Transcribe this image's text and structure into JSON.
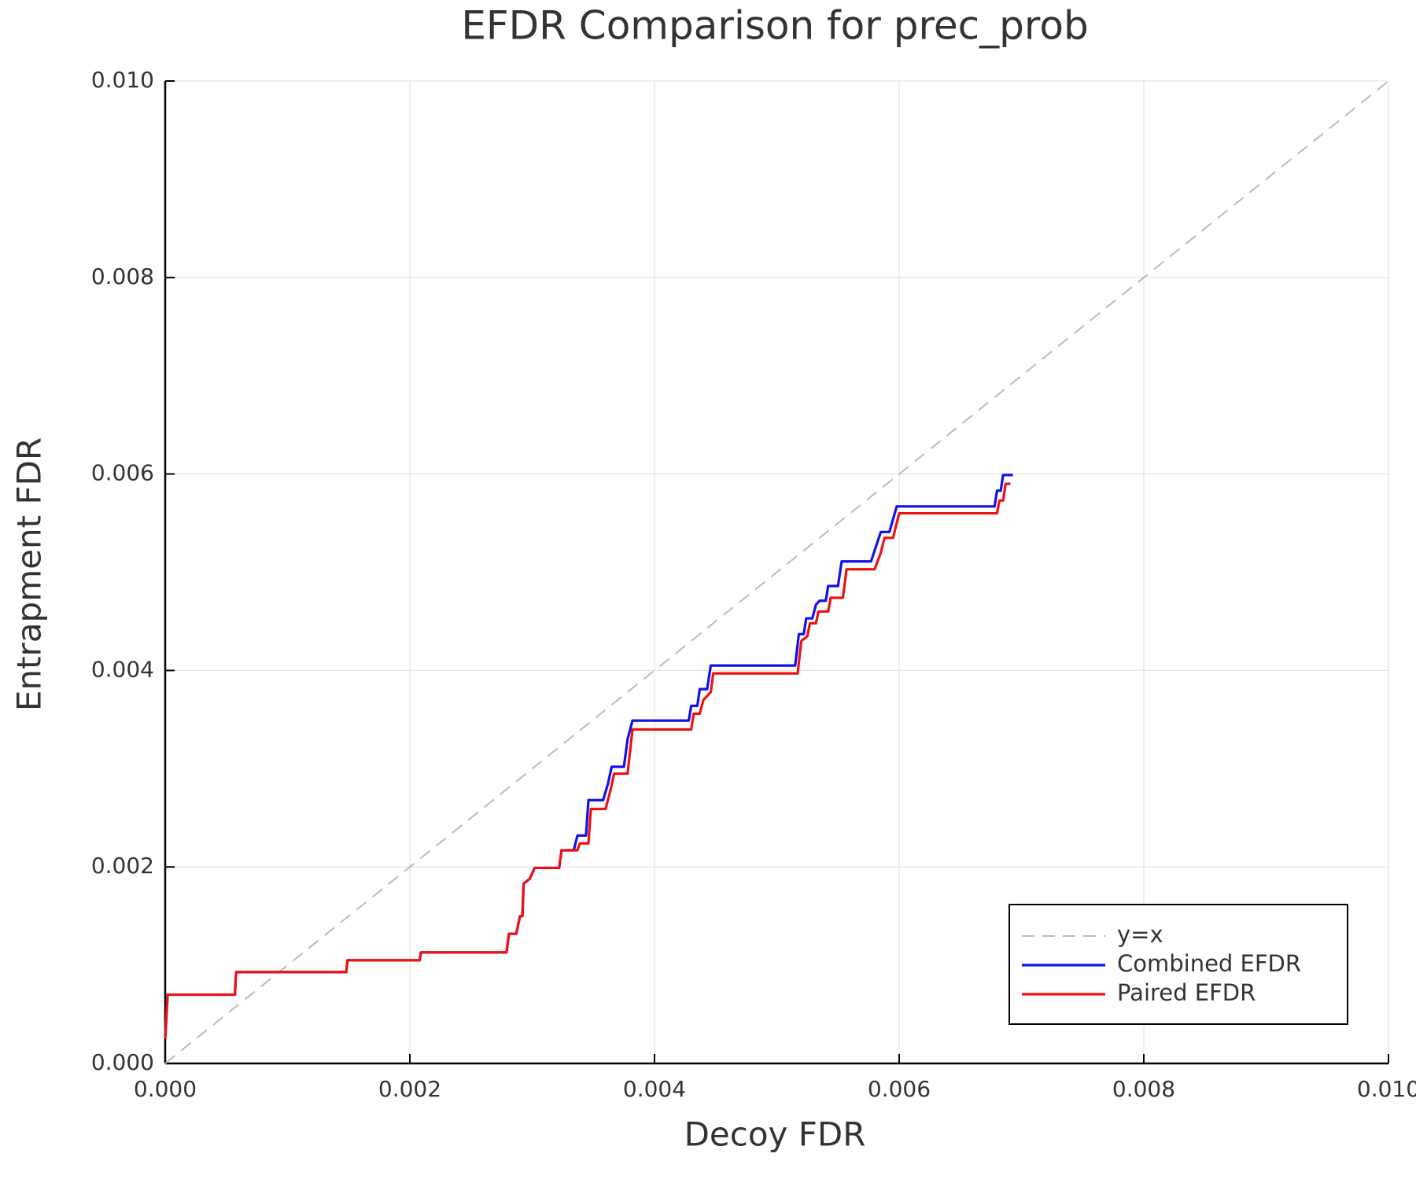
{
  "chart_data": {
    "type": "line",
    "title": "EFDR Comparison for prec_prob",
    "x_label": "Decoy FDR",
    "y_label": "Entrapment FDR",
    "xlim": [
      0,
      0.01
    ],
    "ylim": [
      0,
      0.01
    ],
    "xticks": [
      {
        "value": 0,
        "label": "0.000"
      },
      {
        "value": 0.002,
        "label": "0.002"
      },
      {
        "value": 0.004,
        "label": "0.004"
      },
      {
        "value": 0.006,
        "label": "0.006"
      },
      {
        "value": 0.008,
        "label": "0.008"
      },
      {
        "value": 0.01,
        "label": "0.010"
      }
    ],
    "yticks": [
      {
        "value": 0,
        "label": "0.000"
      },
      {
        "value": 0.002,
        "label": "0.002"
      },
      {
        "value": 0.004,
        "label": "0.004"
      },
      {
        "value": 0.006,
        "label": "0.006"
      },
      {
        "value": 0.008,
        "label": "0.008"
      },
      {
        "value": 0.01,
        "label": "0.010"
      }
    ],
    "grid": true,
    "legend": "bottom-right",
    "series": [
      {
        "name": "y=x",
        "color": "#bbbbbb",
        "dashed": true,
        "x": [
          0,
          0.01
        ],
        "values": [
          0,
          0.01
        ]
      },
      {
        "name": "Combined EFDR",
        "color": "#1010ee",
        "dashed": false,
        "x": [
          0,
          2e-05,
          0.00057,
          0.00058,
          0.00148,
          0.00149,
          0.00208,
          0.00209,
          0.00279,
          0.00281,
          0.00287,
          0.0029,
          0.00292,
          0.00293,
          0.00298,
          0.00302,
          0.00322,
          0.00324,
          0.00334,
          0.00337,
          0.00344,
          0.00346,
          0.00358,
          0.00362,
          0.00365,
          0.00375,
          0.00378,
          0.00382,
          0.00428,
          0.0043,
          0.00435,
          0.00437,
          0.00443,
          0.00446,
          0.00515,
          0.00518,
          0.00522,
          0.00524,
          0.00529,
          0.00532,
          0.00535,
          0.0054,
          0.00542,
          0.0055,
          0.00553,
          0.00577,
          0.00581,
          0.00585,
          0.00592,
          0.00598,
          0.00678,
          0.0068,
          0.00683,
          0.00685,
          0.00693
        ],
        "values": [
          0.00025,
          0.0007,
          0.0007,
          0.00093,
          0.00093,
          0.00105,
          0.00105,
          0.00113,
          0.00113,
          0.00132,
          0.00132,
          0.0015,
          0.0015,
          0.00183,
          0.00188,
          0.00199,
          0.00199,
          0.00217,
          0.00217,
          0.00232,
          0.00232,
          0.00268,
          0.00268,
          0.00285,
          0.00302,
          0.00302,
          0.0033,
          0.00349,
          0.00349,
          0.00364,
          0.00364,
          0.00381,
          0.00381,
          0.00405,
          0.00405,
          0.00437,
          0.00437,
          0.00453,
          0.00453,
          0.00467,
          0.00471,
          0.00471,
          0.00486,
          0.00486,
          0.00511,
          0.00511,
          0.00526,
          0.00541,
          0.00541,
          0.00567,
          0.00567,
          0.00583,
          0.00583,
          0.00599,
          0.00599
        ]
      },
      {
        "name": "Paired EFDR",
        "color": "#ee1111",
        "dashed": false,
        "x": [
          0,
          2e-05,
          0.00057,
          0.00058,
          0.00148,
          0.00149,
          0.00208,
          0.00209,
          0.00279,
          0.00281,
          0.00287,
          0.0029,
          0.00292,
          0.00293,
          0.00298,
          0.00302,
          0.00322,
          0.00324,
          0.00337,
          0.00339,
          0.00346,
          0.00348,
          0.0036,
          0.00364,
          0.00367,
          0.00378,
          0.00382,
          0.0043,
          0.00432,
          0.00437,
          0.0044,
          0.00446,
          0.00448,
          0.00517,
          0.0052,
          0.00525,
          0.00527,
          0.00532,
          0.00534,
          0.00542,
          0.00544,
          0.00554,
          0.00557,
          0.0058,
          0.00585,
          0.00588,
          0.00595,
          0.006,
          0.0068,
          0.00682,
          0.00685,
          0.00687,
          0.00691
        ],
        "values": [
          0.00025,
          0.0007,
          0.0007,
          0.00093,
          0.00093,
          0.00105,
          0.00105,
          0.00113,
          0.00113,
          0.00132,
          0.00132,
          0.0015,
          0.0015,
          0.00183,
          0.00188,
          0.00199,
          0.00199,
          0.00217,
          0.00217,
          0.00224,
          0.00224,
          0.00259,
          0.00259,
          0.00278,
          0.00295,
          0.00295,
          0.0034,
          0.0034,
          0.00356,
          0.00356,
          0.0037,
          0.00378,
          0.00397,
          0.00397,
          0.0043,
          0.00435,
          0.00448,
          0.00448,
          0.0046,
          0.0046,
          0.00474,
          0.00474,
          0.00503,
          0.00503,
          0.0052,
          0.00535,
          0.00535,
          0.0056,
          0.0056,
          0.00573,
          0.00573,
          0.0059,
          0.0059
        ]
      }
    ]
  }
}
